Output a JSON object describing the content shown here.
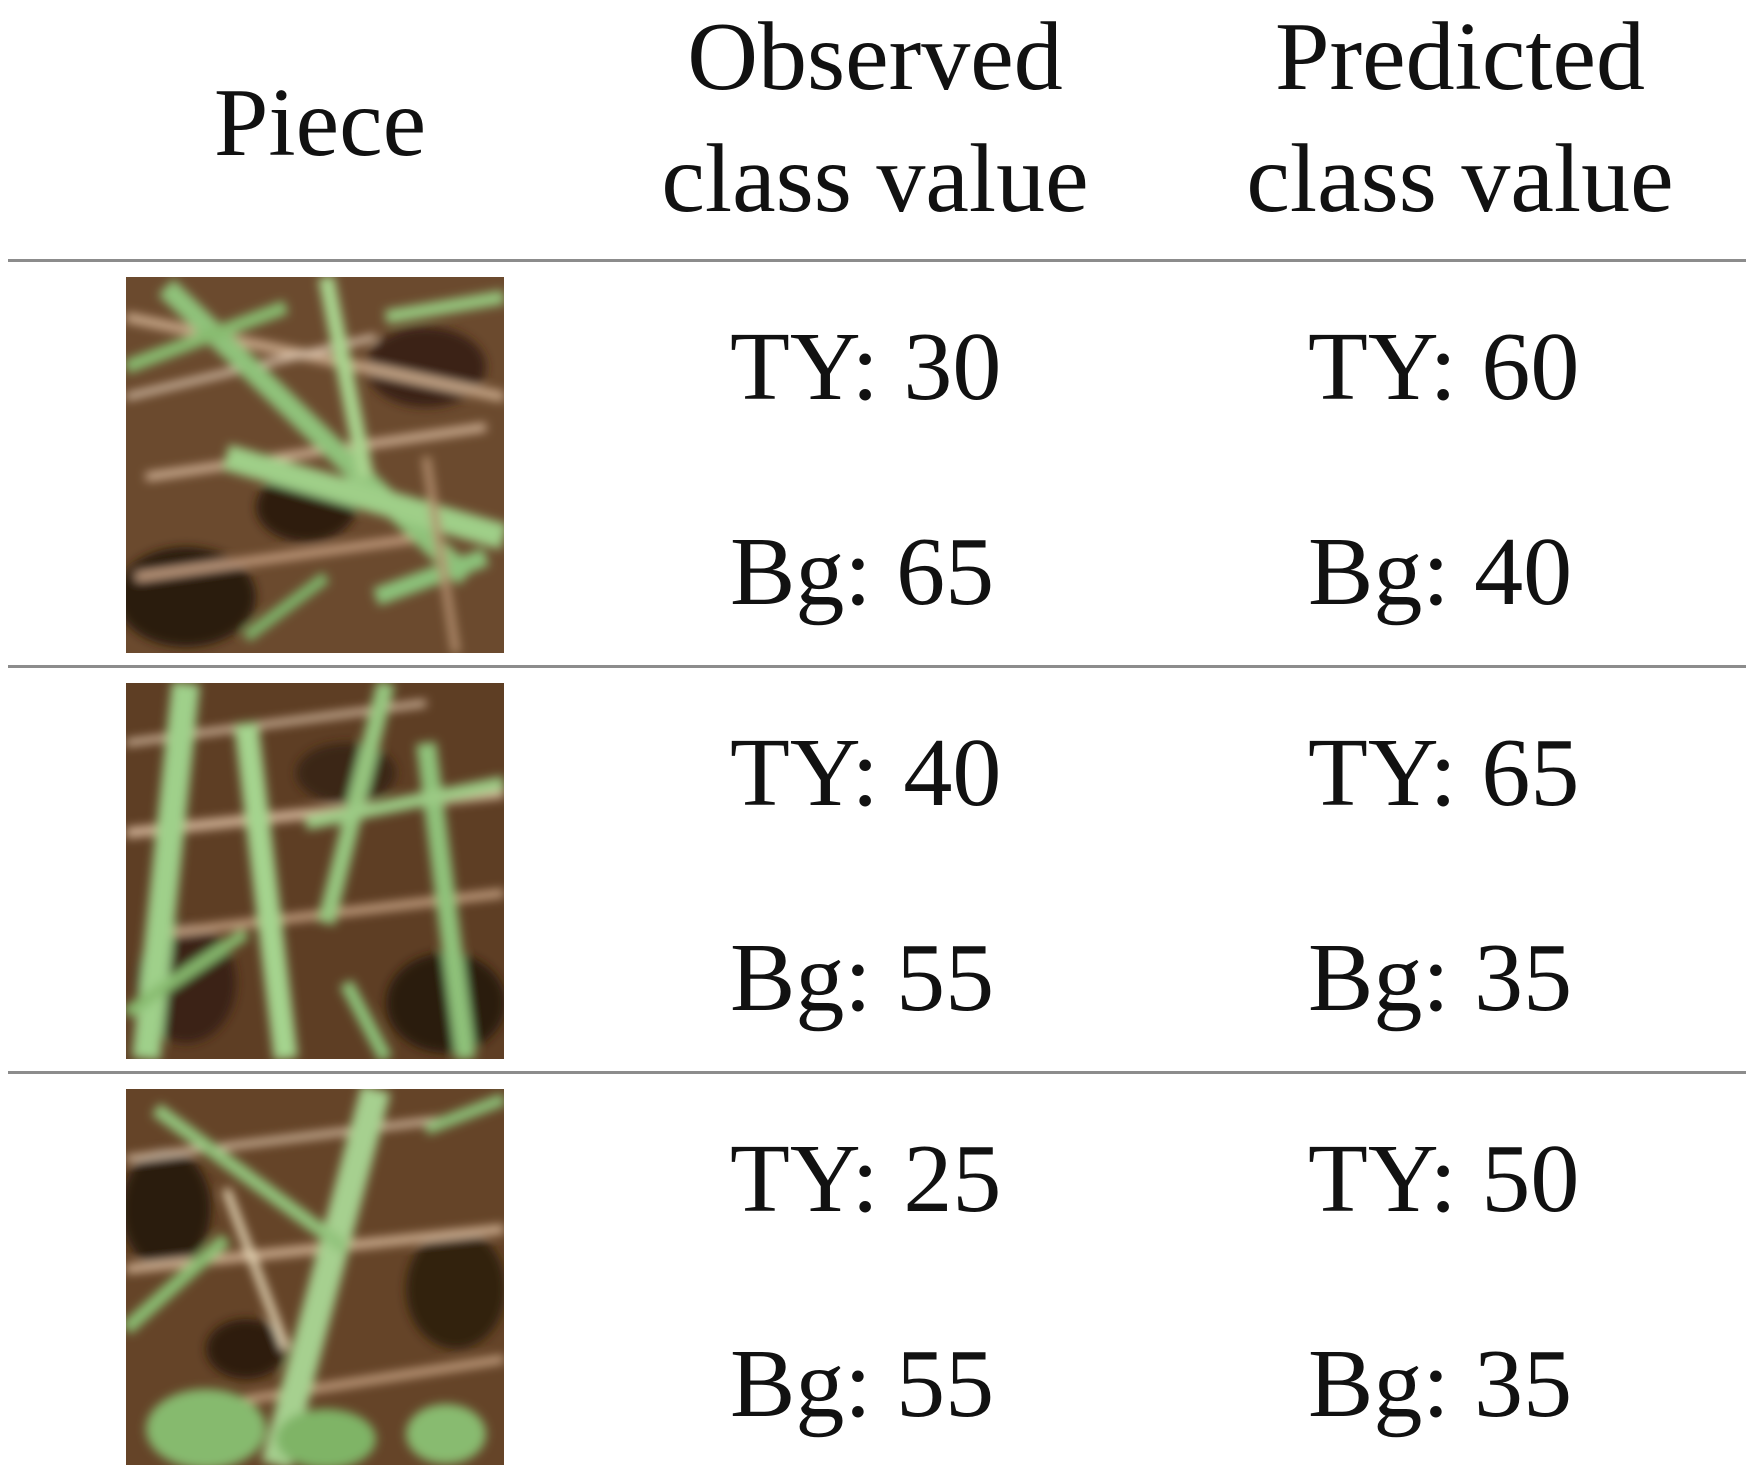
{
  "table": {
    "headers": {
      "piece": "Piece",
      "observed_line1": "Observed",
      "observed_line2": "class value",
      "predicted_line1": "Predicted",
      "predicted_line2": "class value"
    },
    "rows": [
      {
        "observed_ty": "TY: 30",
        "observed_bg": "Bg: 65",
        "predicted_ty": "TY: 60",
        "predicted_bg": "Bg: 40"
      },
      {
        "observed_ty": "TY: 40",
        "observed_bg": "Bg: 55",
        "predicted_ty": "TY: 65",
        "predicted_bg": "Bg: 35"
      },
      {
        "observed_ty": "TY: 25",
        "observed_bg": "Bg: 55",
        "predicted_ty": "TY: 50",
        "predicted_bg": "Bg: 35"
      }
    ]
  },
  "colors": {
    "grass_green": "#8fc27a",
    "soil_brown": "#5a3b22",
    "rule_gray": "#8c8c8c"
  }
}
